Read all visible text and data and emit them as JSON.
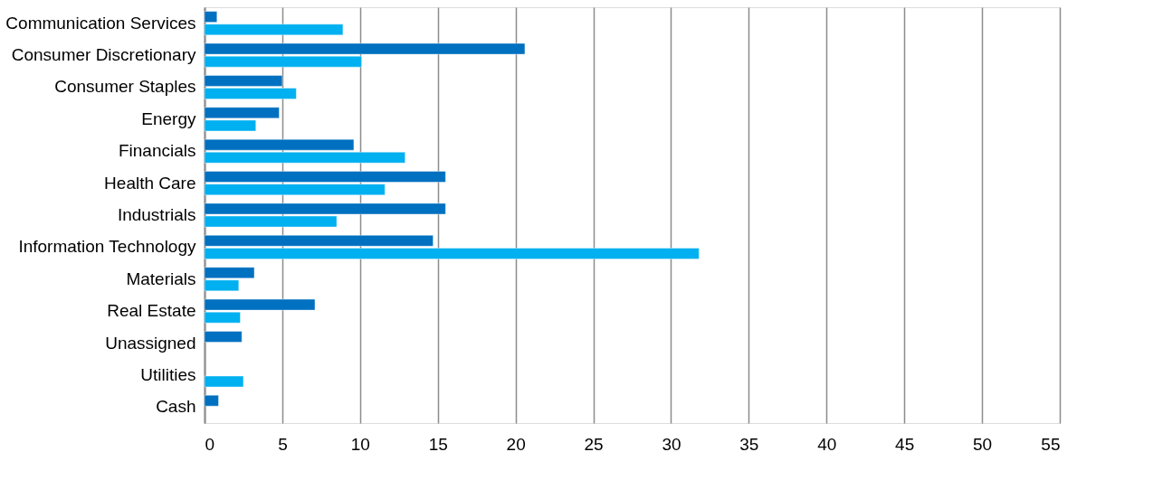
{
  "chart_data": {
    "type": "bar",
    "orientation": "horizontal",
    "categories": [
      "Communication Services",
      "Consumer Discretionary",
      "Consumer Staples",
      "Energy",
      "Financials",
      "Health Care",
      "Industrials",
      "Information Technology",
      "Materials",
      "Real Estate",
      "Unassigned",
      "Utilities",
      "Cash"
    ],
    "series": [
      {
        "color": "#0070c0",
        "values": [
          0.8,
          20.6,
          5.0,
          4.8,
          9.6,
          15.5,
          15.5,
          14.7,
          3.2,
          7.1,
          2.4,
          null,
          0.9
        ]
      },
      {
        "color": "#00b0f0",
        "values": [
          8.9,
          10.1,
          5.9,
          3.3,
          12.9,
          11.6,
          8.5,
          31.8,
          2.2,
          2.3,
          null,
          2.5,
          null
        ]
      }
    ],
    "xlim": [
      0,
      55
    ],
    "xticks": [
      0,
      5,
      10,
      15,
      20,
      25,
      30,
      35,
      40,
      45,
      50,
      55
    ],
    "grid": "x"
  }
}
